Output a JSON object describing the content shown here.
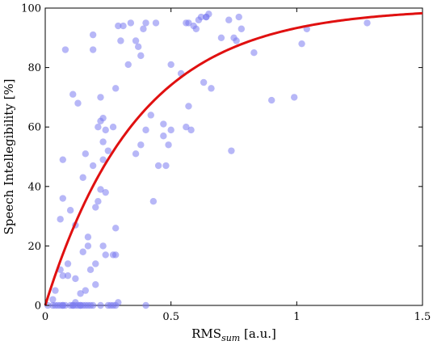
{
  "chart_data": {
    "type": "scatter",
    "xlabel": {
      "main": "RMS",
      "sub": "sum",
      "suffix": " [a.u.]"
    },
    "ylabel": "Speech Intellegibility [%]",
    "xlim": [
      0,
      1.5
    ],
    "ylim": [
      0,
      100
    ],
    "xticks": [
      0,
      0.5,
      1,
      1.5
    ],
    "xtick_labels": [
      "0",
      "0.5",
      "1",
      "1.5"
    ],
    "yticks": [
      0,
      20,
      40,
      60,
      80,
      100
    ],
    "ytick_labels": [
      "0",
      "20",
      "40",
      "60",
      "80",
      "100"
    ],
    "grid": false,
    "point_color": "#7b7bf0",
    "curve_color": "#e01010",
    "series": [
      {
        "kind": "points",
        "x": [
          0.01,
          0.03,
          0.04,
          0.05,
          0.06,
          0.07,
          0.08,
          0.1,
          0.11,
          0.12,
          0.13,
          0.14,
          0.15,
          0.17,
          0.19,
          0.22,
          0.25,
          0.27,
          0.28,
          0.4,
          0.03,
          0.04,
          0.06,
          0.09,
          0.12,
          0.16,
          0.18,
          0.2,
          0.24,
          0.27,
          0.09,
          0.12,
          0.17,
          0.2,
          0.23,
          0.26,
          0.07,
          0.07,
          0.08,
          0.11,
          0.13,
          0.16,
          0.19,
          0.22,
          0.25,
          0.28,
          0.07,
          0.11,
          0.15,
          0.19,
          0.22,
          0.24,
          0.21,
          0.23,
          0.15,
          0.17,
          0.06,
          0.1,
          0.14,
          0.16,
          0.18,
          0.2,
          0.22,
          0.23,
          0.24,
          0.29,
          0.19,
          0.21,
          0.23,
          0.27,
          0.3,
          0.33,
          0.36,
          0.39,
          0.37,
          0.28,
          0.31,
          0.34,
          0.38,
          0.4,
          0.44,
          0.36,
          0.38,
          0.4,
          0.43,
          0.47,
          0.48,
          0.5,
          0.49,
          0.47,
          0.42,
          0.5,
          0.54,
          0.56,
          0.57,
          0.58,
          0.6,
          0.62,
          0.63,
          0.64,
          0.65,
          0.56,
          0.57,
          0.59,
          0.61,
          0.64,
          0.66,
          0.7,
          0.73,
          0.76,
          0.78,
          0.74,
          0.75,
          0.77,
          0.83,
          0.9,
          0.99,
          1.02,
          1.04,
          1.28,
          0.07,
          0.12,
          0.14,
          0.29,
          0.28,
          0.45
        ],
        "y": [
          0,
          0,
          0,
          0,
          0,
          0,
          0,
          0,
          0,
          0,
          0,
          0,
          0,
          0,
          0,
          0,
          0,
          0,
          0,
          0,
          2,
          5,
          12,
          14,
          9,
          5,
          12,
          7,
          17,
          17,
          10,
          27,
          20,
          14,
          20,
          0,
          49,
          36,
          86,
          71,
          68,
          51,
          91,
          70,
          52,
          17,
          10,
          0,
          43,
          86,
          39,
          38,
          35,
          55,
          18,
          23,
          29,
          32,
          0,
          0,
          0,
          33,
          62,
          49,
          59,
          94,
          47,
          60,
          63,
          60,
          89,
          81,
          89,
          93,
          87,
          73,
          94,
          95,
          84,
          95,
          95,
          51,
          54,
          59,
          35,
          61,
          47,
          81,
          54,
          57,
          64,
          59,
          78,
          60,
          67,
          59,
          93,
          97,
          75,
          97,
          98,
          95,
          95,
          94,
          96,
          97,
          73,
          90,
          96,
          89,
          93,
          52,
          90,
          97,
          85,
          69,
          70,
          88,
          93,
          95,
          0,
          1,
          4,
          1,
          26,
          47
        ]
      },
      {
        "kind": "curve",
        "model": "y = 100*(1 - exp(-x/0.37))",
        "x_range": [
          0,
          1.5
        ],
        "tau": 0.37
      }
    ]
  }
}
